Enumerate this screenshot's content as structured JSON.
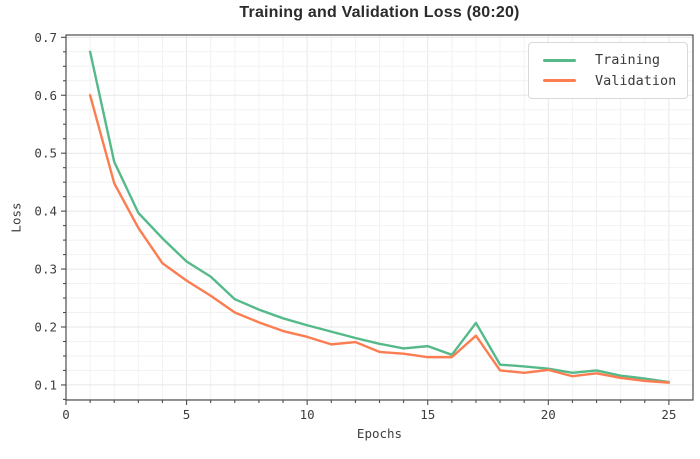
{
  "chart_data": {
    "type": "line",
    "title": "Training and Validation Loss (80:20)",
    "xlabel": "Epochs",
    "ylabel": "Loss",
    "xlim": [
      0,
      26
    ],
    "ylim": [
      0.074,
      0.704
    ],
    "x_major_ticks": [
      0,
      5,
      10,
      15,
      20,
      25
    ],
    "y_major_ticks": [
      0.1,
      0.2,
      0.3,
      0.4,
      0.5,
      0.6,
      0.7
    ],
    "x_minor_step": 1,
    "y_minor_step": 0.025,
    "grid": "both-major-and-minor",
    "legend_position": "upper right",
    "x": [
      1,
      2,
      3,
      4,
      5,
      6,
      7,
      8,
      9,
      10,
      11,
      12,
      13,
      14,
      15,
      16,
      17,
      18,
      19,
      20,
      21,
      22,
      23,
      24,
      25
    ],
    "series": [
      {
        "name": "Training",
        "color": "#56b98a",
        "values": [
          0.675,
          0.485,
          0.397,
          0.353,
          0.313,
          0.287,
          0.248,
          0.23,
          0.215,
          0.203,
          0.192,
          0.181,
          0.171,
          0.163,
          0.167,
          0.152,
          0.207,
          0.135,
          0.132,
          0.128,
          0.121,
          0.125,
          0.116,
          0.111,
          0.105
        ]
      },
      {
        "name": "Validation",
        "color": "#fc7d51",
        "values": [
          0.6,
          0.448,
          0.371,
          0.31,
          0.28,
          0.254,
          0.225,
          0.208,
          0.193,
          0.183,
          0.17,
          0.174,
          0.157,
          0.154,
          0.148,
          0.148,
          0.185,
          0.125,
          0.121,
          0.126,
          0.115,
          0.12,
          0.112,
          0.107,
          0.104
        ]
      }
    ],
    "style": {
      "spine_color": "#4d4d4d",
      "tick_color": "#4d4d4d",
      "grid_major_color": "#e7e7e7",
      "grid_minor_color": "#f2f2f2",
      "background": "#ffffff"
    }
  }
}
